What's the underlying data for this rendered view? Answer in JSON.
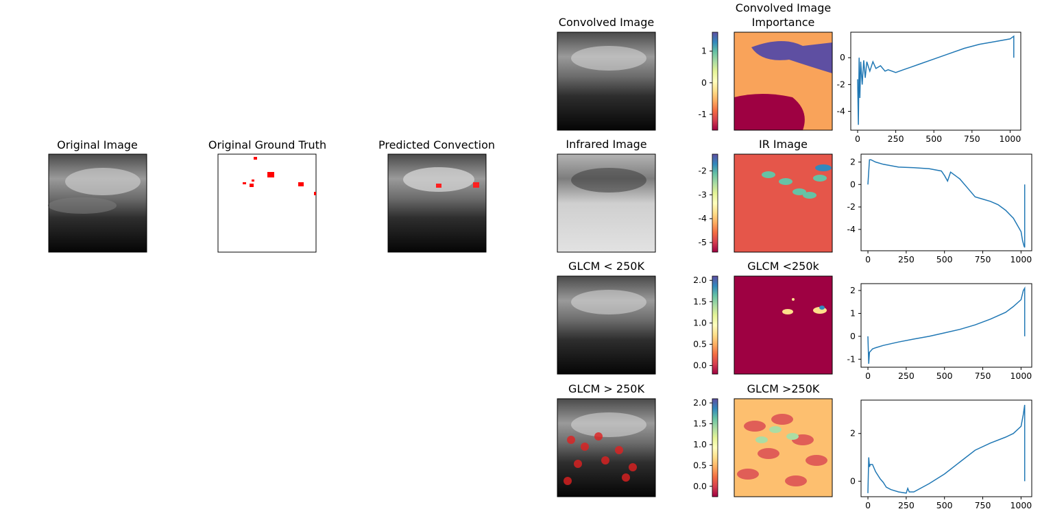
{
  "panels": {
    "original_image": {
      "title": "Original Image"
    },
    "ground_truth": {
      "title": "Original Ground Truth"
    },
    "predicted": {
      "title": "Predicted Convection"
    }
  },
  "rows": [
    {
      "image_title": "Convolved Image",
      "importance_title": [
        "Convolved Image",
        "Importance"
      ],
      "colorbar": {
        "colormap": "Spectral",
        "range": [
          -1.5,
          1.6
        ],
        "ticks": [
          "1",
          "0",
          "-1"
        ]
      },
      "palette": {
        "base": "#f9a35a",
        "blob1": "#5e4fa2",
        "blob2": "#9e0142"
      }
    },
    {
      "image_title": "Infrared Image",
      "importance_title": [
        "IR Image"
      ],
      "colorbar": {
        "colormap": "Spectral",
        "range": [
          -5.4,
          -1.3
        ],
        "ticks": [
          "-2",
          "-3",
          "-4",
          "-5"
        ]
      },
      "palette": {
        "base": "#e5564a",
        "blob1": "#66c2a5",
        "blob2": "#3288bd"
      }
    },
    {
      "image_title": "GLCM < 250K",
      "importance_title": [
        "GLCM <250k"
      ],
      "colorbar": {
        "colormap": "Spectral",
        "range": [
          -0.2,
          2.1
        ],
        "ticks": [
          "2.0",
          "1.5",
          "1.0",
          "0.5",
          "0.0"
        ]
      },
      "palette": {
        "base": "#9e0142",
        "blob1": "#fee08b",
        "blob2": "#3288bd"
      }
    },
    {
      "image_title": "GLCM > 250K",
      "importance_title": [
        "GLCM >250K"
      ],
      "colorbar": {
        "colormap": "Spectral",
        "range": [
          -0.25,
          2.1
        ],
        "ticks": [
          "2.0",
          "1.5",
          "1.0",
          "0.5",
          "0.0"
        ]
      },
      "palette": {
        "base": "#fdbf6f",
        "blob1": "#d53e4f",
        "blob2": "#abdda4"
      }
    }
  ],
  "chart_data": [
    {
      "type": "line",
      "x_ticks": [
        "0",
        "250",
        "500",
        "750",
        "1000"
      ],
      "y_ticks": [
        "0",
        "-2",
        "-4"
      ],
      "xlim": [
        -45,
        1070
      ],
      "ylim": [
        -5.4,
        1.9
      ],
      "series": [
        {
          "x": [
            0,
            5,
            10,
            15,
            20,
            30,
            40,
            50,
            60,
            80,
            100,
            120,
            150,
            180,
            200,
            250,
            300,
            350,
            400,
            500,
            600,
            700,
            800,
            900,
            1000,
            1024,
            1024
          ],
          "y": [
            -1.6,
            -5.0,
            0.0,
            -3.0,
            -0.3,
            -2.0,
            -0.2,
            -1.5,
            -0.3,
            -1.0,
            -0.3,
            -0.8,
            -0.6,
            -1.0,
            -0.9,
            -1.1,
            -0.9,
            -0.7,
            -0.5,
            -0.1,
            0.3,
            0.7,
            1.0,
            1.2,
            1.4,
            1.6,
            0.0
          ]
        }
      ]
    },
    {
      "type": "line",
      "x_ticks": [
        "0",
        "250",
        "500",
        "750",
        "1000"
      ],
      "y_ticks": [
        "2",
        "0",
        "-2",
        "-4"
      ],
      "xlim": [
        -45,
        1070
      ],
      "ylim": [
        -5.9,
        2.7
      ],
      "series": [
        {
          "x": [
            0,
            10,
            20,
            50,
            100,
            200,
            300,
            400,
            480,
            500,
            520,
            540,
            600,
            650,
            700,
            750,
            800,
            850,
            900,
            950,
            1000,
            1010,
            1020,
            1024,
            1024
          ],
          "y": [
            0.0,
            2.2,
            2.2,
            2.0,
            1.8,
            1.55,
            1.5,
            1.4,
            1.2,
            0.8,
            0.3,
            1.1,
            0.5,
            -0.3,
            -1.1,
            -1.3,
            -1.5,
            -1.8,
            -2.3,
            -3.0,
            -4.2,
            -5.0,
            -5.5,
            -5.6,
            0.0
          ]
        }
      ]
    },
    {
      "type": "line",
      "x_ticks": [
        "0",
        "250",
        "500",
        "750",
        "1000"
      ],
      "y_ticks": [
        "2",
        "1",
        "0",
        "-1"
      ],
      "xlim": [
        -45,
        1070
      ],
      "ylim": [
        -1.35,
        2.3
      ],
      "series": [
        {
          "x": [
            0,
            5,
            10,
            30,
            50,
            100,
            200,
            300,
            400,
            500,
            600,
            700,
            800,
            900,
            950,
            1000,
            1015,
            1024,
            1024
          ],
          "y": [
            0.0,
            -1.2,
            -0.7,
            -0.55,
            -0.5,
            -0.4,
            -0.25,
            -0.12,
            0.0,
            0.15,
            0.3,
            0.5,
            0.75,
            1.05,
            1.3,
            1.6,
            2.0,
            2.1,
            0.0
          ]
        }
      ]
    },
    {
      "type": "line",
      "x_ticks": [
        "0",
        "250",
        "500",
        "750",
        "1000"
      ],
      "y_ticks": [
        "2",
        "0"
      ],
      "xlim": [
        -45,
        1070
      ],
      "ylim": [
        -0.65,
        3.4
      ],
      "series": [
        {
          "x": [
            0,
            5,
            10,
            15,
            30,
            50,
            80,
            100,
            120,
            150,
            200,
            250,
            260,
            270,
            300,
            400,
            500,
            600,
            700,
            800,
            900,
            950,
            1000,
            1015,
            1024,
            1024
          ],
          "y": [
            -0.5,
            1.0,
            0.6,
            0.7,
            0.7,
            0.4,
            0.1,
            -0.05,
            -0.25,
            -0.35,
            -0.45,
            -0.5,
            -0.3,
            -0.45,
            -0.45,
            -0.1,
            0.3,
            0.8,
            1.3,
            1.6,
            1.85,
            2.0,
            2.3,
            2.8,
            3.2,
            0.0
          ]
        }
      ]
    }
  ]
}
